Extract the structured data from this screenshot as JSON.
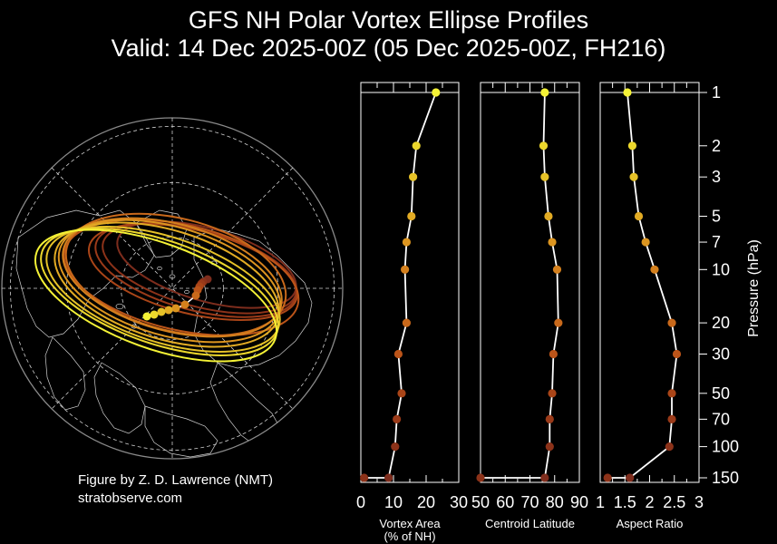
{
  "title": {
    "line1": "GFS NH Polar Vortex Ellipse Profiles",
    "line2": "Valid: 14 Dec 2025-00Z  (05 Dec 2025-00Z, FH216)"
  },
  "credit": {
    "line1": "Figure by Z. D. Lawrence (NMT)",
    "line2": "stratobserve.com"
  },
  "colors": {
    "background": "#000000",
    "axis": "#ffffff",
    "line": "#ffffff",
    "grid": "#d0d0d0",
    "coast": "#cfcfcf",
    "map_circle": "#8a8a8a"
  },
  "chart_data": [
    {
      "type": "line",
      "panel": "vortex-area",
      "xlabel": "Vortex Area\n(% of NH)",
      "xlim": [
        0,
        30
      ],
      "xticks": [
        "0",
        "10",
        "20",
        "30"
      ],
      "xtick_values": [
        0,
        10,
        20,
        30
      ],
      "minor_ticks": [
        5,
        15,
        25
      ],
      "pressure_hpa": [
        1,
        2,
        3,
        5,
        7,
        10,
        20,
        30,
        50,
        70,
        100,
        150
      ],
      "values": [
        23,
        17,
        16,
        15.5,
        14,
        13.5,
        14,
        11.5,
        12.5,
        11,
        10.5,
        8.5
      ],
      "extra_point": {
        "pressure": 150,
        "value": 1
      }
    },
    {
      "type": "line",
      "panel": "centroid-latitude",
      "xlabel": "Centroid Latitude",
      "xlim": [
        50,
        90
      ],
      "xticks": [
        "50",
        "60",
        "70",
        "80",
        "90"
      ],
      "xtick_values": [
        50,
        60,
        70,
        80,
        90
      ],
      "minor_ticks": [
        55,
        65,
        75,
        85
      ],
      "pressure_hpa": [
        1,
        2,
        3,
        5,
        7,
        10,
        20,
        30,
        50,
        70,
        100,
        150
      ],
      "values": [
        76,
        75.5,
        76,
        77.5,
        79,
        81,
        81.5,
        79.5,
        79,
        78,
        78,
        76
      ],
      "extra_point": {
        "pressure": 150,
        "value": 50
      }
    },
    {
      "type": "line",
      "panel": "aspect-ratio",
      "xlabel": "Aspect Ratio",
      "xlim": [
        1,
        3
      ],
      "xticks": [
        "1",
        "1.5",
        "2",
        "2.5",
        "3"
      ],
      "xtick_values": [
        1,
        1.5,
        2,
        2.5,
        3
      ],
      "minor_ticks": [
        1.25,
        1.75,
        2.25,
        2.75
      ],
      "pressure_hpa": [
        1,
        2,
        3,
        5,
        7,
        10,
        20,
        30,
        50,
        70,
        100,
        150
      ],
      "values": [
        1.55,
        1.65,
        1.68,
        1.78,
        1.92,
        2.1,
        2.45,
        2.55,
        2.45,
        2.45,
        2.4,
        1.6
      ],
      "extra_point": {
        "pressure": 150,
        "value": 1.15
      }
    }
  ],
  "pressure_axis": {
    "label": "Pressure (hPa)",
    "ticks": [
      1,
      2,
      3,
      5,
      7,
      10,
      20,
      30,
      50,
      70,
      100,
      150
    ],
    "tick_labels": [
      "1",
      "2",
      "3",
      "5",
      "7",
      "10",
      "20",
      "30",
      "50",
      "70",
      "100",
      "150"
    ],
    "range": [
      1,
      150
    ]
  },
  "level_colors": [
    "#f4f236",
    "#ecd72c",
    "#e6c228",
    "#e2ab24",
    "#dc9520",
    "#d4801d",
    "#c9691b",
    "#bb5419",
    "#aa4518",
    "#9a3a19",
    "#8c3219",
    "#7e2d1d"
  ]
}
